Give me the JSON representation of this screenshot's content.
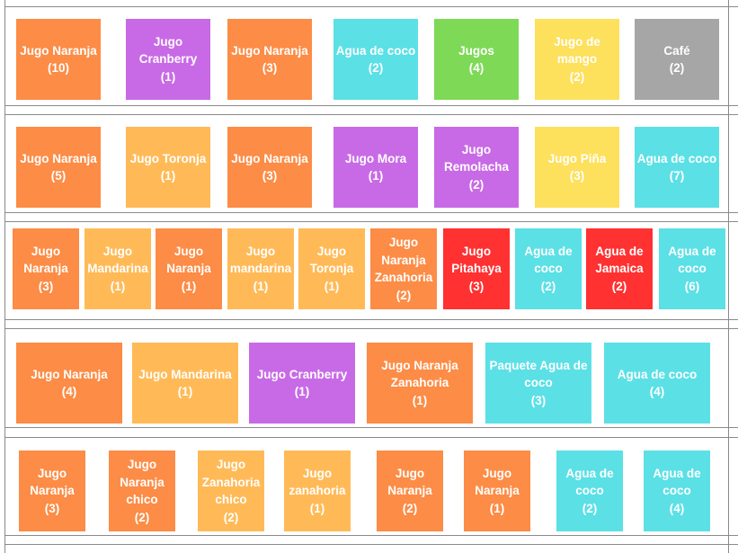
{
  "colors": {
    "orange": "#fc8c46",
    "purple": "#c86ae6",
    "cyan": "#5be0e6",
    "green": "#7ed957",
    "yellow": "#fde05c",
    "gray": "#a6a6a6",
    "light_orange": "#ffba57",
    "red": "#ff3131"
  },
  "rows": [
    {
      "tiles": [
        {
          "name": "Jugo Naranja",
          "qty": "(10)",
          "color": "orange"
        },
        {
          "name": "Jugo Cranberry",
          "qty": "(1)",
          "color": "purple"
        },
        {
          "name": "Jugo Naranja",
          "qty": "(3)",
          "color": "orange"
        },
        {
          "name": "Agua de coco",
          "qty": "(2)",
          "color": "cyan"
        },
        {
          "name": "Jugos",
          "qty": "(4)",
          "color": "green"
        },
        {
          "name": "Jugo de mango",
          "qty": "(2)",
          "color": "yellow"
        },
        {
          "name": "Café",
          "qty": "(2)",
          "color": "gray"
        }
      ]
    },
    {
      "tiles": [
        {
          "name": "Jugo Naranja",
          "qty": "(5)",
          "color": "orange"
        },
        {
          "name": "Jugo Toronja",
          "qty": "(1)",
          "color": "light_orange"
        },
        {
          "name": "Jugo Naranja",
          "qty": "(3)",
          "color": "orange"
        },
        {
          "name": "Jugo Mora",
          "qty": "(1)",
          "color": "purple"
        },
        {
          "name": "Jugo Remolacha",
          "qty": "(2)",
          "color": "purple"
        },
        {
          "name": "Jugo Piña",
          "qty": "(3)",
          "color": "yellow"
        },
        {
          "name": "Agua de coco",
          "qty": "(7)",
          "color": "cyan"
        }
      ]
    },
    {
      "tiles": [
        {
          "name": "Jugo Naranja",
          "qty": "(3)",
          "color": "orange"
        },
        {
          "name": "Jugo Mandarina",
          "qty": "(1)",
          "color": "light_orange"
        },
        {
          "name": "Jugo Naranja",
          "qty": "(1)",
          "color": "orange"
        },
        {
          "name": "Jugo mandarina",
          "qty": "(1)",
          "color": "light_orange"
        },
        {
          "name": "Jugo Toronja",
          "qty": "(1)",
          "color": "light_orange"
        },
        {
          "name": "Jugo Naranja Zanahoria",
          "qty": "(2)",
          "color": "orange"
        },
        {
          "name": "Jugo Pitahaya",
          "qty": "(3)",
          "color": "red"
        },
        {
          "name": "Agua de coco",
          "qty": "(2)",
          "color": "cyan"
        },
        {
          "name": "Agua de Jamaica",
          "qty": "(2)",
          "color": "red"
        },
        {
          "name": "Agua de coco",
          "qty": "(6)",
          "color": "cyan"
        }
      ]
    },
    {
      "tiles": [
        {
          "name": "Jugo Naranja",
          "qty": "(4)",
          "color": "orange"
        },
        {
          "name": "Jugo Mandarina",
          "qty": "(1)",
          "color": "light_orange"
        },
        {
          "name": "Jugo Cranberry",
          "qty": "(1)",
          "color": "purple"
        },
        {
          "name": "Jugo Naranja Zanahoria",
          "qty": "(1)",
          "color": "orange"
        },
        {
          "name": "Paquete Agua de coco",
          "qty": "(3)",
          "color": "cyan"
        },
        {
          "name": "Agua de coco",
          "qty": "(4)",
          "color": "cyan"
        }
      ]
    },
    {
      "tiles": [
        {
          "name": "Jugo Naranja",
          "qty": "(3)",
          "color": "orange"
        },
        {
          "name": "Jugo Naranja chico",
          "qty": "(2)",
          "color": "orange"
        },
        {
          "name": "Jugo Zanahoria chico",
          "qty": "(2)",
          "color": "light_orange"
        },
        {
          "name": "Jugo zanahoria",
          "qty": "(1)",
          "color": "light_orange"
        },
        {
          "name": "Jugo Naranja",
          "qty": "(2)",
          "color": "orange"
        },
        {
          "name": "Jugo Naranja",
          "qty": "(1)",
          "color": "orange"
        },
        {
          "name": "Agua de coco",
          "qty": "(2)",
          "color": "cyan"
        },
        {
          "name": "Agua de coco",
          "qty": "(4)",
          "color": "cyan"
        }
      ]
    }
  ]
}
